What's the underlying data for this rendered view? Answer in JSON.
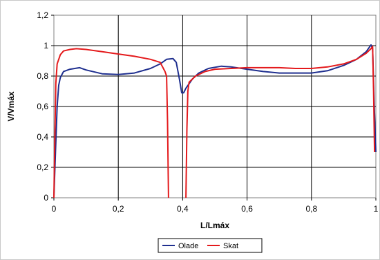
{
  "chart_data": {
    "type": "line",
    "xlabel": "L/Lmáx",
    "ylabel": "V/Vmáx",
    "xlim": [
      0,
      1
    ],
    "ylim": [
      0,
      1.2
    ],
    "x_ticks": [
      "0",
      "0,2",
      "0,4",
      "0,6",
      "0,8",
      "1"
    ],
    "y_ticks": [
      "0",
      "0,2",
      "0,4",
      "0,6",
      "0,8",
      "1",
      "1,2"
    ],
    "grid": true,
    "legend_position": "bottom-center",
    "series": [
      {
        "name": "Olade",
        "color": "#1f2f8f",
        "points": [
          [
            0.0,
            0.0
          ],
          [
            0.005,
            0.3
          ],
          [
            0.01,
            0.6
          ],
          [
            0.015,
            0.74
          ],
          [
            0.02,
            0.79
          ],
          [
            0.03,
            0.83
          ],
          [
            0.05,
            0.845
          ],
          [
            0.08,
            0.855
          ],
          [
            0.1,
            0.84
          ],
          [
            0.15,
            0.815
          ],
          [
            0.2,
            0.81
          ],
          [
            0.25,
            0.82
          ],
          [
            0.3,
            0.85
          ],
          [
            0.33,
            0.88
          ],
          [
            0.35,
            0.91
          ],
          [
            0.37,
            0.915
          ],
          [
            0.38,
            0.89
          ],
          [
            0.39,
            0.78
          ],
          [
            0.397,
            0.69
          ],
          [
            0.403,
            0.69
          ],
          [
            0.41,
            0.72
          ],
          [
            0.43,
            0.78
          ],
          [
            0.45,
            0.82
          ],
          [
            0.48,
            0.85
          ],
          [
            0.52,
            0.865
          ],
          [
            0.55,
            0.86
          ],
          [
            0.6,
            0.845
          ],
          [
            0.65,
            0.83
          ],
          [
            0.7,
            0.82
          ],
          [
            0.75,
            0.82
          ],
          [
            0.8,
            0.82
          ],
          [
            0.85,
            0.835
          ],
          [
            0.9,
            0.87
          ],
          [
            0.94,
            0.91
          ],
          [
            0.97,
            0.96
          ],
          [
            0.985,
            1.005
          ],
          [
            0.99,
            0.98
          ],
          [
            0.995,
            0.6
          ],
          [
            1.0,
            0.3
          ]
        ]
      },
      {
        "name": "Skat",
        "color": "#e41a1c",
        "points": [
          [
            0.0,
            0.0
          ],
          [
            0.003,
            0.4
          ],
          [
            0.006,
            0.75
          ],
          [
            0.01,
            0.88
          ],
          [
            0.02,
            0.94
          ],
          [
            0.03,
            0.965
          ],
          [
            0.05,
            0.975
          ],
          [
            0.07,
            0.98
          ],
          [
            0.1,
            0.975
          ],
          [
            0.15,
            0.96
          ],
          [
            0.2,
            0.945
          ],
          [
            0.25,
            0.93
          ],
          [
            0.3,
            0.91
          ],
          [
            0.33,
            0.89
          ],
          [
            0.345,
            0.83
          ],
          [
            0.35,
            0.8
          ],
          [
            0.353,
            0.5
          ],
          [
            0.356,
            0.0
          ],
          null,
          [
            0.41,
            0.0
          ],
          [
            0.413,
            0.45
          ],
          [
            0.416,
            0.7
          ],
          [
            0.42,
            0.76
          ],
          [
            0.44,
            0.8
          ],
          [
            0.47,
            0.83
          ],
          [
            0.5,
            0.845
          ],
          [
            0.55,
            0.85
          ],
          [
            0.6,
            0.855
          ],
          [
            0.65,
            0.855
          ],
          [
            0.7,
            0.855
          ],
          [
            0.75,
            0.85
          ],
          [
            0.8,
            0.85
          ],
          [
            0.85,
            0.86
          ],
          [
            0.9,
            0.88
          ],
          [
            0.94,
            0.91
          ],
          [
            0.97,
            0.95
          ],
          [
            0.985,
            0.98
          ],
          [
            0.99,
            0.995
          ],
          [
            0.993,
            0.7
          ],
          [
            0.996,
            0.3
          ]
        ]
      }
    ]
  }
}
